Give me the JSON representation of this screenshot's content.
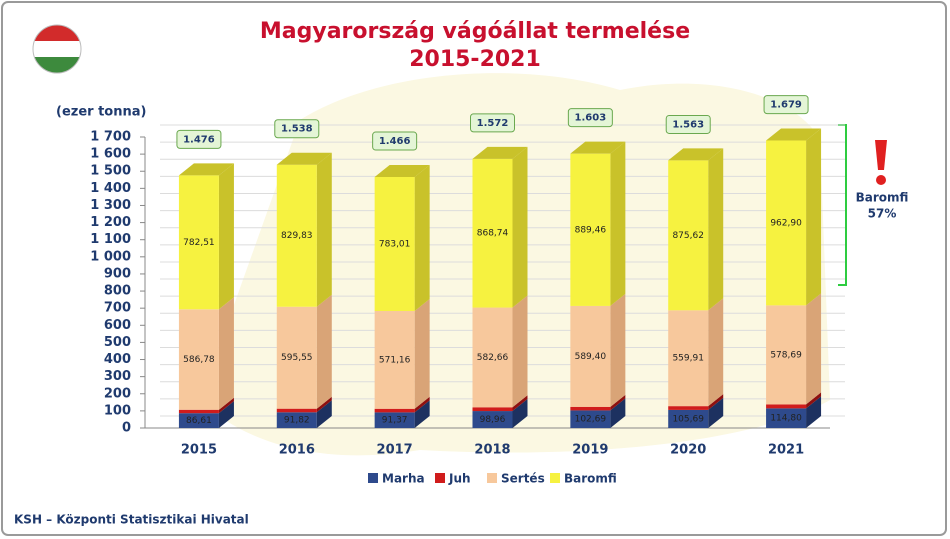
{
  "chart_data": {
    "type": "bar",
    "stacked": true,
    "title": "Magyarország vágóállat termelése",
    "subtitle": "2015-2021",
    "y_label": "(ezer tonna)",
    "source": "KSH – Központi Statisztikai Hivatal",
    "annotation": {
      "label": "Baromfi",
      "value": "57%"
    },
    "categories": [
      "2015",
      "2016",
      "2017",
      "2018",
      "2019",
      "2020",
      "2021"
    ],
    "series": [
      {
        "name": "Marha",
        "color": "#2e4a8c",
        "side": "#1d3160",
        "values": [
          86.61,
          91.82,
          91.37,
          98.96,
          102.69,
          105.69,
          114.8
        ],
        "value_labels": [
          "86,61",
          "91,82",
          "91,37",
          "98,96",
          "102,69",
          "105,69",
          "114,80"
        ]
      },
      {
        "name": "Juh",
        "color": "#d01c1c",
        "side": "#8e1010",
        "values": [
          20,
          21,
          21,
          22,
          21,
          22,
          23
        ]
      },
      {
        "name": "Sertés",
        "color": "#f7c89c",
        "side": "#d9a477",
        "values": [
          586.78,
          595.55,
          571.16,
          582.66,
          589.4,
          559.91,
          578.69
        ],
        "value_labels": [
          "586,78",
          "595,55",
          "571,16",
          "582,66",
          "589,40",
          "559,91",
          "578,69"
        ]
      },
      {
        "name": "Baromfi",
        "color": "#f6f240",
        "side": "#c9c22a",
        "values": [
          782.51,
          829.83,
          783.01,
          868.74,
          889.46,
          875.62,
          962.9
        ],
        "value_labels": [
          "782,51",
          "829,83",
          "783,01",
          "868,74",
          "889,46",
          "875,62",
          "962,90"
        ]
      }
    ],
    "totals": [
      {
        "value": 1476,
        "label": "1.476"
      },
      {
        "value": 1538,
        "label": "1.538"
      },
      {
        "value": 1466,
        "label": "1.466"
      },
      {
        "value": 1572,
        "label": "1.572"
      },
      {
        "value": 1603,
        "label": "1.603"
      },
      {
        "value": 1563,
        "label": "1.563"
      },
      {
        "value": 1679,
        "label": "1.679"
      }
    ],
    "ylim": [
      0,
      1700
    ],
    "yticks": [
      0,
      100,
      200,
      300,
      400,
      500,
      600,
      700,
      800,
      900,
      {
        "value": 1000,
        "label": "1 000"
      },
      {
        "value": 1100,
        "label": "1 100"
      },
      {
        "value": 1200,
        "label": "1 200"
      },
      {
        "value": 1300,
        "label": "1 300"
      },
      {
        "value": 1400,
        "label": "1 400"
      },
      {
        "value": 1500,
        "label": "1 500"
      },
      {
        "value": 1600,
        "label": "1 600"
      },
      {
        "value": 1700,
        "label": "1 700"
      }
    ],
    "grid": true
  }
}
